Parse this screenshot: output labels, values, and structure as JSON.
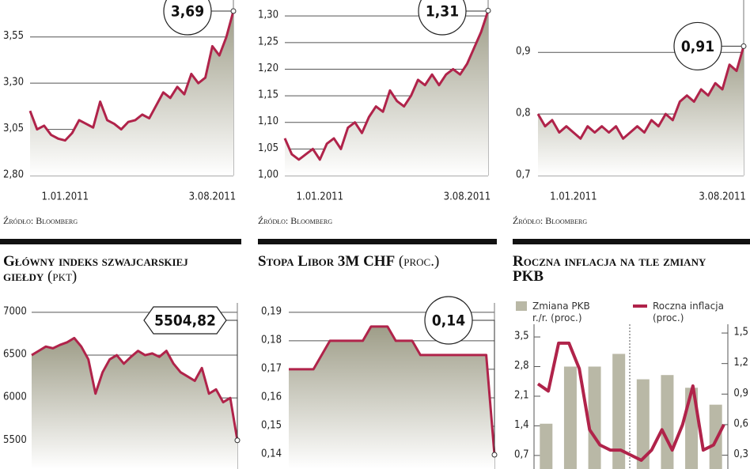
{
  "chart_data": [
    {
      "type": "area",
      "color": "#b0234a",
      "categories": [
        null,
        null,
        null,
        null,
        null,
        "1.01.2011",
        null,
        null,
        null,
        null,
        null,
        null,
        null,
        null,
        null,
        null,
        null,
        null,
        null,
        null,
        null,
        null,
        null,
        null,
        null,
        null,
        "3.08.2011",
        null,
        null,
        null
      ],
      "values": [
        3.15,
        3.05,
        3.07,
        3.02,
        3.0,
        2.99,
        3.03,
        3.1,
        3.08,
        3.06,
        3.2,
        3.1,
        3.08,
        3.05,
        3.09,
        3.1,
        3.13,
        3.11,
        3.18,
        3.25,
        3.22,
        3.28,
        3.24,
        3.35,
        3.3,
        3.33,
        3.5,
        3.45,
        3.55,
        3.69
      ],
      "value_labels": [
        null,
        null,
        null,
        null,
        null,
        null,
        null,
        null,
        null,
        null,
        null,
        null,
        null,
        null,
        null,
        null,
        null,
        null,
        null,
        null,
        null,
        null,
        null,
        null,
        null,
        null,
        null,
        null,
        null,
        "3,69"
      ],
      "ylim": [
        2.8,
        3.75
      ],
      "yticks": [
        {
          "value": 2.8,
          "label": "2,80"
        },
        {
          "value": 3.05,
          "label": "3,05"
        },
        {
          "value": 3.3,
          "label": "3,30"
        },
        {
          "value": 3.55,
          "label": "3,55"
        }
      ],
      "source": "Źródło: Bloomberg"
    },
    {
      "type": "area",
      "color": "#b0234a",
      "categories": [
        null,
        null,
        null,
        null,
        null,
        "1.01.2011",
        null,
        null,
        null,
        null,
        null,
        null,
        null,
        null,
        null,
        null,
        null,
        null,
        null,
        null,
        null,
        null,
        null,
        null,
        null,
        null,
        "3.08.2011",
        null,
        null,
        null
      ],
      "values": [
        1.07,
        1.04,
        1.03,
        1.04,
        1.05,
        1.03,
        1.06,
        1.07,
        1.05,
        1.09,
        1.1,
        1.08,
        1.11,
        1.13,
        1.12,
        1.16,
        1.14,
        1.13,
        1.15,
        1.18,
        1.17,
        1.19,
        1.17,
        1.19,
        1.2,
        1.19,
        1.21,
        1.24,
        1.27,
        1.31
      ],
      "value_labels": [
        null,
        null,
        null,
        null,
        null,
        null,
        null,
        null,
        null,
        null,
        null,
        null,
        null,
        null,
        null,
        null,
        null,
        null,
        null,
        null,
        null,
        null,
        null,
        null,
        null,
        null,
        null,
        null,
        null,
        "1,31"
      ],
      "ylim": [
        1.0,
        1.33
      ],
      "yticks": [
        {
          "value": 1.0,
          "label": "1,00"
        },
        {
          "value": 1.05,
          "label": "1,05"
        },
        {
          "value": 1.1,
          "label": "1,10"
        },
        {
          "value": 1.15,
          "label": "1,15"
        },
        {
          "value": 1.2,
          "label": "1,20"
        },
        {
          "value": 1.25,
          "label": "1,25"
        },
        {
          "value": 1.3,
          "label": "1,30"
        }
      ],
      "source": "Źródło: Bloomberg"
    },
    {
      "type": "area",
      "color": "#b0234a",
      "categories": [
        null,
        null,
        null,
        null,
        null,
        "1.01.2011",
        null,
        null,
        null,
        null,
        null,
        null,
        null,
        null,
        null,
        null,
        null,
        null,
        null,
        null,
        null,
        null,
        null,
        null,
        null,
        null,
        "3.08.2011",
        null,
        null,
        null
      ],
      "values": [
        0.8,
        0.78,
        0.79,
        0.77,
        0.78,
        0.77,
        0.76,
        0.78,
        0.77,
        0.78,
        0.77,
        0.78,
        0.76,
        0.77,
        0.78,
        0.77,
        0.79,
        0.78,
        0.8,
        0.79,
        0.82,
        0.83,
        0.82,
        0.84,
        0.83,
        0.85,
        0.84,
        0.88,
        0.87,
        0.91
      ],
      "value_labels": [
        null,
        null,
        null,
        null,
        null,
        null,
        null,
        null,
        null,
        null,
        null,
        null,
        null,
        null,
        null,
        null,
        null,
        null,
        null,
        null,
        null,
        null,
        null,
        null,
        null,
        null,
        null,
        null,
        null,
        "0,91"
      ],
      "ylim": [
        0.7,
        0.985
      ],
      "yticks": [
        {
          "value": 0.7,
          "label": "0,7"
        },
        {
          "value": 0.8,
          "label": "0,8"
        },
        {
          "value": 0.9,
          "label": "0,9"
        }
      ],
      "source": "Źródło: Bloomberg"
    },
    {
      "type": "area",
      "color": "#b0234a",
      "title": "Główny indeks szwajcarskiej giełdy",
      "unit": "(pkt)",
      "values": [
        6500,
        6550,
        6600,
        6580,
        6620,
        6650,
        6700,
        6600,
        6450,
        6050,
        6300,
        6450,
        6500,
        6400,
        6480,
        6550,
        6500,
        6520,
        6480,
        6550,
        6400,
        6300,
        6250,
        6200,
        6350,
        6050,
        6100,
        5950,
        6000,
        5504.82
      ],
      "value_labels": [
        null,
        null,
        null,
        null,
        null,
        null,
        null,
        null,
        null,
        null,
        null,
        null,
        null,
        null,
        null,
        null,
        null,
        null,
        null,
        null,
        null,
        null,
        null,
        null,
        null,
        null,
        null,
        null,
        null,
        "5504,82"
      ],
      "ylim": [
        5170,
        7110
      ],
      "yticks": [
        5500,
        6000,
        6500,
        7000
      ]
    },
    {
      "type": "area",
      "color": "#b0234a",
      "title": "Stopa Libor 3M CHF",
      "unit": "(proc.)",
      "values": [
        0.17,
        0.17,
        0.17,
        0.17,
        0.175,
        0.18,
        0.18,
        0.18,
        0.18,
        0.18,
        0.185,
        0.185,
        0.185,
        0.18,
        0.18,
        0.18,
        0.175,
        0.175,
        0.175,
        0.175,
        0.175,
        0.175,
        0.175,
        0.175,
        0.175,
        0.14
      ],
      "value_labels": [
        null,
        null,
        null,
        null,
        null,
        null,
        null,
        null,
        null,
        null,
        null,
        null,
        null,
        null,
        null,
        null,
        null,
        null,
        null,
        null,
        null,
        null,
        null,
        null,
        null,
        "0,14"
      ],
      "ylim": [
        0.135,
        0.1933
      ],
      "yticks": [
        {
          "value": 0.14,
          "label": "0,14"
        },
        {
          "value": 0.15,
          "label": "0,15"
        },
        {
          "value": 0.16,
          "label": "0,16"
        },
        {
          "value": 0.17,
          "label": "0,17"
        },
        {
          "value": 0.18,
          "label": "0,18"
        },
        {
          "value": 0.19,
          "label": "0,19"
        }
      ]
    },
    {
      "type": "bar",
      "title": "Roczna inflacja na tle zmiany PKB",
      "series": [
        {
          "name": "Zmiana PKB r./r. (proc.)",
          "color": "#b9b8a6",
          "kind": "bar",
          "values": [
            1.45,
            2.8,
            2.8,
            3.1,
            2.5,
            2.6,
            2.3,
            1.9
          ]
        },
        {
          "name": "Roczna inflacja (proc.)",
          "color": "#b0234a",
          "kind": "line",
          "axis": "y2",
          "values": [
            1.0,
            0.93,
            1.4,
            1.4,
            1.15,
            0.55,
            0.4,
            0.35,
            0.35,
            0.3,
            0.25,
            0.35,
            0.55,
            0.35,
            0.6,
            0.98,
            0.35,
            0.4,
            0.6
          ]
        }
      ],
      "ylim": [
        0.38,
        3.8
      ],
      "yticks": [
        {
          "value": 0.7,
          "label": "0,7"
        },
        {
          "value": 1.4,
          "label": "1,4"
        },
        {
          "value": 2.1,
          "label": "2,1"
        },
        {
          "value": 2.8,
          "label": "2,8"
        },
        {
          "value": 3.5,
          "label": "3,5"
        }
      ],
      "y2lim": [
        0.164,
        1.586
      ],
      "y2ticks": [
        {
          "value": 0.3,
          "label": "0,3"
        },
        {
          "value": 0.6,
          "label": "0,6"
        },
        {
          "value": 0.9,
          "label": "0,9"
        },
        {
          "value": 1.2,
          "label": "1,2"
        },
        {
          "value": 1.5,
          "label": "1,5"
        }
      ]
    }
  ]
}
